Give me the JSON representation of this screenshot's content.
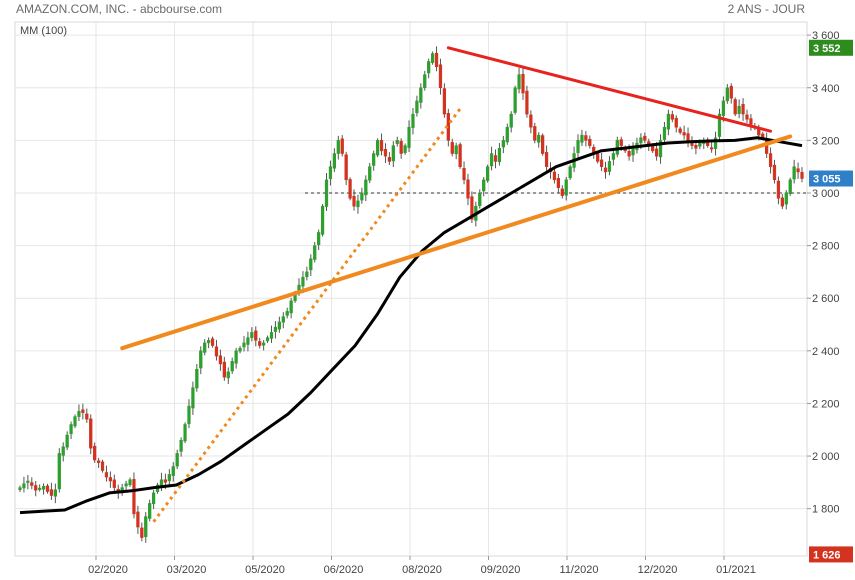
{
  "header": {
    "title": "AMAZON.COM, INC. - abcbourse.com",
    "period": "2 ANS - JOUR"
  },
  "chart_data": {
    "type": "candlestick",
    "indicator_label": "MM (100)",
    "y_ticks": [
      "3 600",
      "3 400",
      "3 200",
      "3 000",
      "2 800",
      "2 600",
      "2 400",
      "2 200",
      "2 000",
      "1 800"
    ],
    "y_tick_values": [
      3600,
      3400,
      3200,
      3000,
      2800,
      2600,
      2400,
      2200,
      2000,
      1800
    ],
    "x_ticks": [
      "02/2020",
      "03/2020",
      "05/2020",
      "06/2020",
      "08/2020",
      "09/2020",
      "11/2020",
      "12/2020",
      "01/2021"
    ],
    "ylim": [
      1620,
      3650
    ],
    "grid": true,
    "badges": [
      {
        "label": "3 552",
        "value": 3552,
        "color": "#2e8b1e"
      },
      {
        "label": "3 055",
        "value": 3055,
        "color": "#2f80c8"
      },
      {
        "label": "1 626",
        "value": 1626,
        "color": "#d2321e"
      }
    ],
    "reference_level": 3000,
    "up_color": "#2e9e2e",
    "down_color": "#d2321e",
    "ma_color": "#000000",
    "trendline_color": "#f08a1e",
    "resistance_color": "#e8231e",
    "close_series": [
      1880,
      1895,
      1905,
      1888,
      1870,
      1878,
      1885,
      1865,
      1850,
      1872,
      2010,
      2035,
      2080,
      2120,
      2150,
      2170,
      2165,
      2140,
      2030,
      1985,
      1975,
      1945,
      1920,
      1905,
      1880,
      1860,
      1880,
      1895,
      1910,
      1780,
      1730,
      1690,
      1770,
      1820,
      1860,
      1890,
      1910,
      1900,
      1930,
      1960,
      2010,
      2060,
      2120,
      2190,
      2260,
      2330,
      2400,
      2430,
      2440,
      2420,
      2380,
      2350,
      2300,
      2320,
      2360,
      2400,
      2410,
      2430,
      2450,
      2470,
      2440,
      2420,
      2430,
      2450,
      2470,
      2490,
      2510,
      2530,
      2550,
      2590,
      2620,
      2650,
      2680,
      2700,
      2750,
      2800,
      2850,
      2950,
      3050,
      3100,
      3150,
      3200,
      3150,
      3050,
      2980,
      2950,
      2970,
      3000,
      3050,
      3100,
      3150,
      3200,
      3160,
      3140,
      3120,
      3180,
      3200,
      3150,
      3180,
      3250,
      3300,
      3350,
      3400,
      3450,
      3500,
      3530,
      3480,
      3400,
      3300,
      3200,
      3150,
      3180,
      3100,
      3050,
      2980,
      2900,
      2950,
      3000,
      3050,
      3100,
      3150,
      3120,
      3170,
      3200,
      3250,
      3300,
      3400,
      3450,
      3380,
      3300,
      3250,
      3200,
      3220,
      3150,
      3100,
      3080,
      3050,
      3020,
      2990,
      3050,
      3100,
      3150,
      3200,
      3220,
      3200,
      3180,
      3150,
      3120,
      3100,
      3080,
      3120,
      3150,
      3200,
      3180,
      3160,
      3140,
      3170,
      3190,
      3210,
      3200,
      3180,
      3160,
      3140,
      3200,
      3250,
      3300,
      3280,
      3250,
      3230,
      3220,
      3200,
      3180,
      3170,
      3190,
      3200,
      3180,
      3170,
      3210,
      3300,
      3350,
      3400,
      3360,
      3300,
      3330,
      3300,
      3280,
      3260,
      3250,
      3220,
      3210,
      3150,
      3100,
      3050,
      2980,
      2950,
      3000,
      3050,
      3100,
      3080,
      3055
    ],
    "moving_average_100": [
      1785,
      1790,
      1795,
      1830,
      1860,
      1868,
      1880,
      1890,
      1930,
      1980,
      2040,
      2100,
      2160,
      2240,
      2330,
      2420,
      2540,
      2680,
      2780,
      2850,
      2900,
      2950,
      3000,
      3050,
      3100,
      3130,
      3160,
      3170,
      3180,
      3190,
      3195,
      3198,
      3200,
      3210,
      3195,
      3180
    ],
    "support_trendline": {
      "start": 2410,
      "end": 3215
    },
    "accel_trendline": {
      "start": 1750,
      "end": 3320
    },
    "resistance_trendline": {
      "start": 3552,
      "end": 3235
    }
  }
}
